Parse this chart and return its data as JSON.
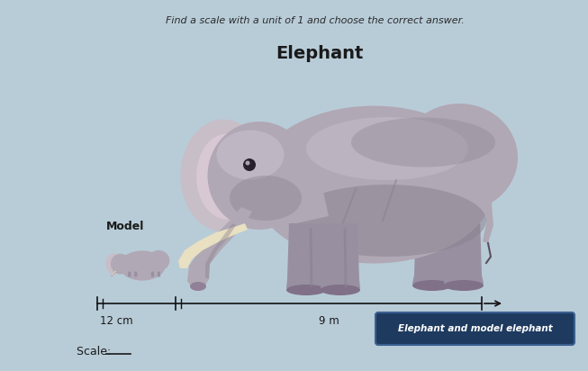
{
  "bg_color": "#b8ccd8",
  "title_text": "Find a scale with a unit of 1 and choose the correct answer.",
  "elephant_label": "Elephant",
  "model_label": "Model",
  "measurement_model": "12 cm",
  "measurement_real": "9 m",
  "scale_label": "Scale: ",
  "legend_text": "Elephant and model elephant",
  "legend_bg": "#1e3a5f",
  "legend_text_color": "#ffffff",
  "title_color": "#2a2a2a",
  "label_color": "#1a1a1a",
  "line_color": "#111111",
  "elephant_body": "#b0a8b4",
  "elephant_dark": "#8a8090",
  "elephant_shadow": "#706878",
  "elephant_light": "#ccc4d0",
  "tusk_color": "#e8e0c0",
  "leg_color": "#9890a0"
}
